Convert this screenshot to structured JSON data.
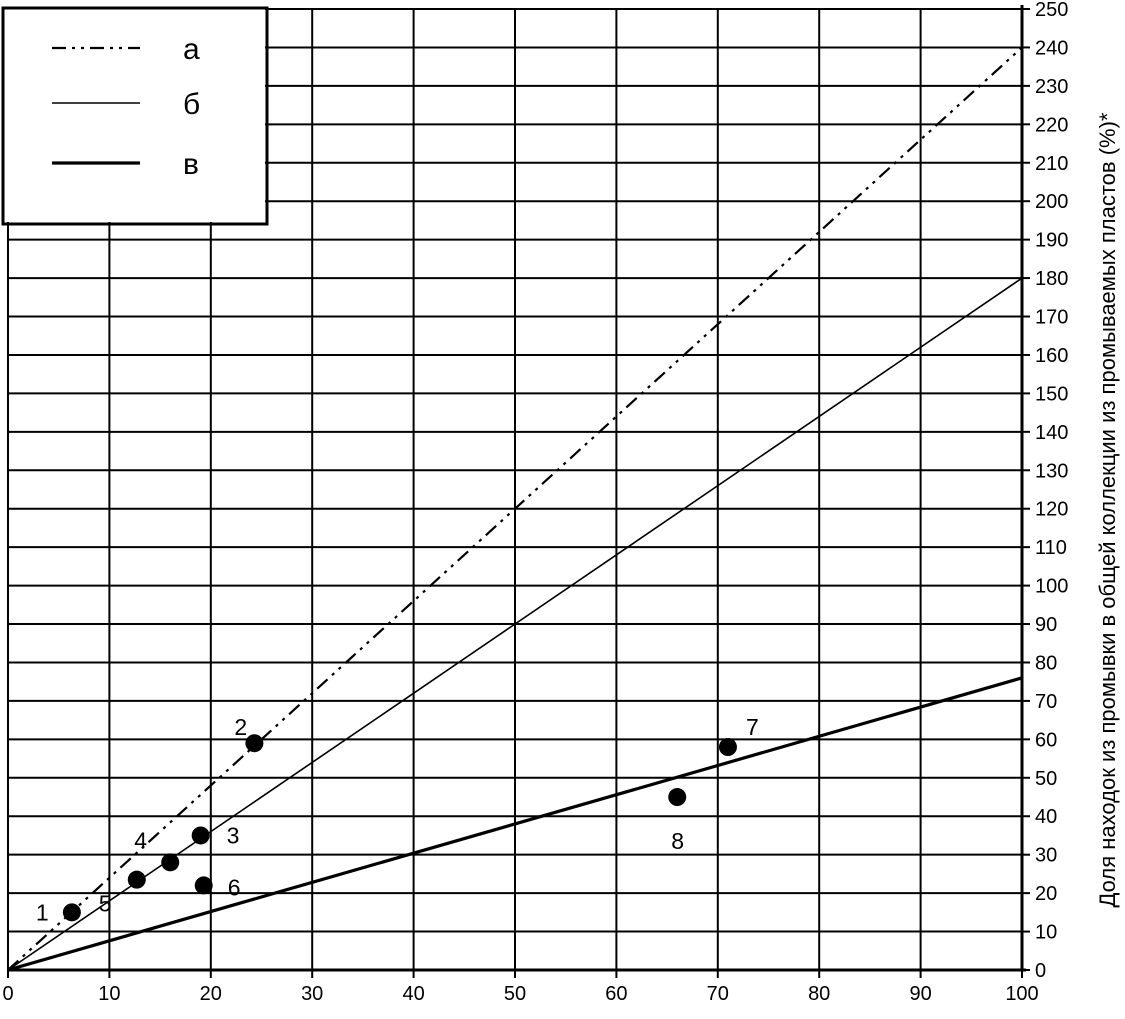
{
  "chart_data": {
    "type": "scatter",
    "xlim": [
      0,
      100
    ],
    "ylim": [
      0,
      250
    ],
    "x_ticks": [
      "0",
      "10",
      "20",
      "30",
      "40",
      "50",
      "60",
      "70",
      "80",
      "90",
      "100"
    ],
    "y_ticks": [
      "0",
      "10",
      "20",
      "30",
      "40",
      "50",
      "60",
      "70",
      "80",
      "90",
      "100",
      "110",
      "120",
      "130",
      "140",
      "150",
      "160",
      "170",
      "180",
      "190",
      "200",
      "210",
      "220",
      "230",
      "240",
      "250"
    ],
    "y_axis_position": "right",
    "ylabel": "Доля находок из промывки в общей коллекции из промываемых пластов (%)*",
    "xlabel": "",
    "grid": true,
    "legend_position": "top-left",
    "lines": [
      {
        "name": "а",
        "style": "dash-dot",
        "slope": 2.4,
        "points": [
          [
            0,
            0
          ],
          [
            100,
            240
          ]
        ]
      },
      {
        "name": "б",
        "style": "thin-solid",
        "slope": 1.8,
        "points": [
          [
            0,
            0
          ],
          [
            100,
            180
          ]
        ]
      },
      {
        "name": "в",
        "style": "thick-solid",
        "slope": 0.76,
        "points": [
          [
            0,
            0
          ],
          [
            100,
            76
          ]
        ]
      }
    ],
    "points": [
      {
        "label": "1",
        "x": 6.3,
        "y": 15
      },
      {
        "label": "2",
        "x": 24.3,
        "y": 59
      },
      {
        "label": "3",
        "x": 19,
        "y": 35
      },
      {
        "label": "4",
        "x": 16,
        "y": 28
      },
      {
        "label": "5",
        "x": 12.7,
        "y": 23.5
      },
      {
        "label": "6",
        "x": 19.3,
        "y": 22
      },
      {
        "label": "7",
        "x": 71,
        "y": 58
      },
      {
        "label": "8",
        "x": 66,
        "y": 45
      }
    ]
  }
}
